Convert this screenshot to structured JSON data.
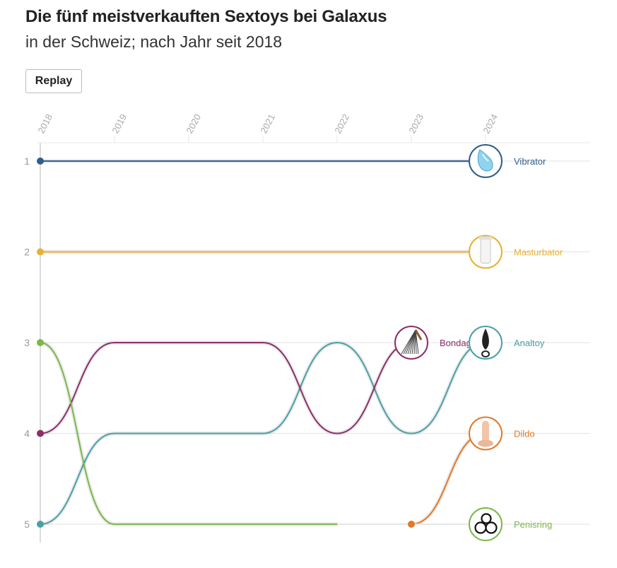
{
  "header": {
    "title": "Die fünf meistverkauften Sextoys bei Galaxus",
    "subtitle": "in der Schweiz; nach Jahr seit 2018",
    "replay_label": "Replay"
  },
  "chart_data": {
    "type": "bump",
    "title": "Die fünf meistverkauften Sextoys bei Galaxus",
    "subtitle": "in der Schweiz; nach Jahr seit 2018",
    "x": [
      "2018",
      "2019",
      "2020",
      "2021",
      "2022",
      "2023",
      "2024"
    ],
    "y_ticks": [
      1,
      2,
      3,
      4,
      5
    ],
    "y_reversed": true,
    "grid": true,
    "series": [
      {
        "name": "Vibrator",
        "color": "#2e5f8a",
        "ranks": [
          1,
          1,
          1,
          1,
          1,
          1,
          1
        ],
        "end_rank": 1,
        "end_icon": "vibrator-icon"
      },
      {
        "name": "Masturbator",
        "color": "#e8b030",
        "ranks": [
          2,
          2,
          2,
          2,
          2,
          2,
          2
        ],
        "end_rank": 2,
        "end_icon": "masturbator-icon"
      },
      {
        "name": "Analtoy",
        "color": "#4aa0a6",
        "ranks": [
          5,
          4,
          4,
          4,
          3,
          4,
          3
        ],
        "end_rank": 3,
        "end_icon": "analtoy-icon"
      },
      {
        "name": "Bondage",
        "display_label": "Bondag",
        "color": "#8c2e6a",
        "ranks": [
          4,
          3,
          3,
          3,
          4,
          3,
          null
        ],
        "end_rank": 3,
        "end_icon": "bondage-whip-icon"
      },
      {
        "name": "Dildo",
        "color": "#e07a2a",
        "ranks": [
          null,
          null,
          null,
          null,
          null,
          5,
          4
        ],
        "end_rank": 4,
        "end_icon": "dildo-icon"
      },
      {
        "name": "Penisring",
        "color": "#7ab84a",
        "ranks": [
          3,
          5,
          5,
          5,
          5,
          null,
          null
        ],
        "end_rank": 5,
        "end_icon": "penisring-icon"
      }
    ]
  }
}
